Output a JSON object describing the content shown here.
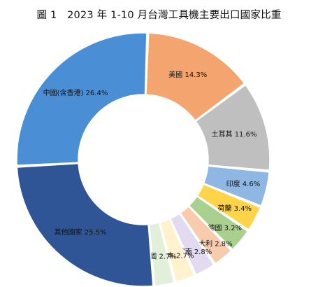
{
  "title": "圖 1　2023 年 1-10 月台灣工具機主要出口國家比重",
  "chart_data": {
    "type": "pie",
    "donut": true,
    "title": "圖 1　2023 年 1-10 月台灣工具機主要出口國家比重",
    "legend": "none",
    "slices": [
      {
        "label": "美國",
        "value": 14.3,
        "value_text": "14.3%",
        "color": "#F4A46E"
      },
      {
        "label": "土耳其",
        "value": 11.6,
        "value_text": "11.6%",
        "color": "#BFBFBF"
      },
      {
        "label": "印度",
        "value": 4.6,
        "value_text": "4.6%",
        "color": "#8FB7E3"
      },
      {
        "label": "荷蘭",
        "value": 3.4,
        "value_text": "3.4%",
        "color": "#FFD449"
      },
      {
        "label": "德國",
        "value": 3.2,
        "value_text": "3.2%",
        "color": "#A9D08E"
      },
      {
        "label": "義大利",
        "value": 2.8,
        "value_text": "2.8%",
        "color": "#F8CBAD"
      },
      {
        "label": "越南",
        "value": 2.8,
        "value_text": "2.8%",
        "color": "#E2DAEE"
      },
      {
        "label": "日本",
        "value": 2.7,
        "value_text": "2.7%",
        "color": "#FFF2CC"
      },
      {
        "label": "泰國",
        "value": 2.7,
        "value_text": "2.7%",
        "color": "#E2EFDA"
      },
      {
        "label": "其他國家",
        "value": 25.5,
        "value_text": "25.5%",
        "color": "#2F5597"
      },
      {
        "label": "中國(含香港)",
        "value": 26.4,
        "value_text": "26.4%",
        "color": "#4A8ED6"
      }
    ]
  }
}
